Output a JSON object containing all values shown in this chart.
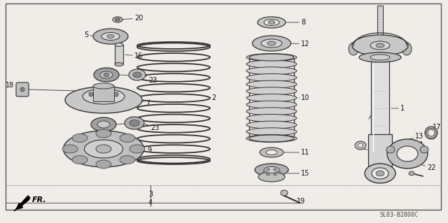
{
  "bg_color": "#f0ede8",
  "border_color": "#555555",
  "line_color": "#333333",
  "diagram_code_text": "SL03-B2800C",
  "figsize": [
    6.4,
    3.19
  ],
  "dpi": 100
}
